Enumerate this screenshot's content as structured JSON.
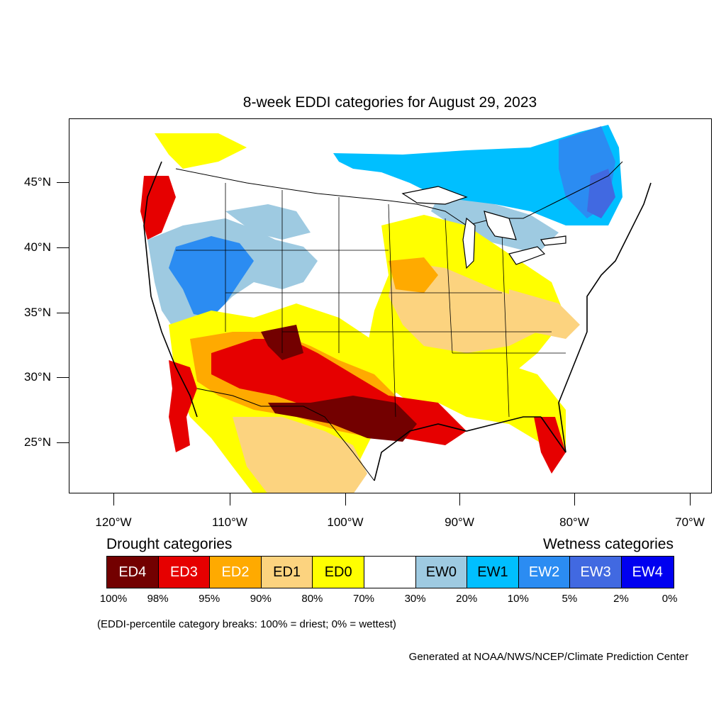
{
  "title": "8-week EDDI categories for August 29, 2023",
  "latitude_labels": [
    "45°N",
    "40°N",
    "35°N",
    "30°N",
    "25°N"
  ],
  "longitude_labels": [
    "120°W",
    "110°W",
    "100°W",
    "90°W",
    "80°W",
    "70°W"
  ],
  "legend": {
    "drought_heading": "Drought categories",
    "wetness_heading": "Wetness categories",
    "categories": [
      {
        "label": "ED4",
        "color": "#730000",
        "text_color": "#ffffff"
      },
      {
        "label": "ED3",
        "color": "#e60000",
        "text_color": "#ffffff"
      },
      {
        "label": "ED2",
        "color": "#ffaa00",
        "text_color": "#ffffff"
      },
      {
        "label": "ED1",
        "color": "#fcd37f",
        "text_color": "#000000"
      },
      {
        "label": "ED0",
        "color": "#ffff00",
        "text_color": "#000000"
      },
      {
        "label": "",
        "color": "#ffffff",
        "text_color": "#000000"
      },
      {
        "label": "EW0",
        "color": "#9ecae1",
        "text_color": "#000000"
      },
      {
        "label": "EW1",
        "color": "#00bfff",
        "text_color": "#000000"
      },
      {
        "label": "EW2",
        "color": "#2b8cf2",
        "text_color": "#ffffff"
      },
      {
        "label": "EW3",
        "color": "#4169e1",
        "text_color": "#ffffff"
      },
      {
        "label": "EW4",
        "color": "#0000f0",
        "text_color": "#ffffff"
      }
    ],
    "breaks": [
      "100%",
      "98%",
      "95%",
      "90%",
      "80%",
      "70%",
      "30%",
      "20%",
      "10%",
      "5%",
      "2%",
      "0%"
    ]
  },
  "note": "(EDDI-percentile category breaks: 100% = driest; 0% = wettest)",
  "credit": "Generated at NOAA/NWS/NCEP/Climate Prediction Center"
}
